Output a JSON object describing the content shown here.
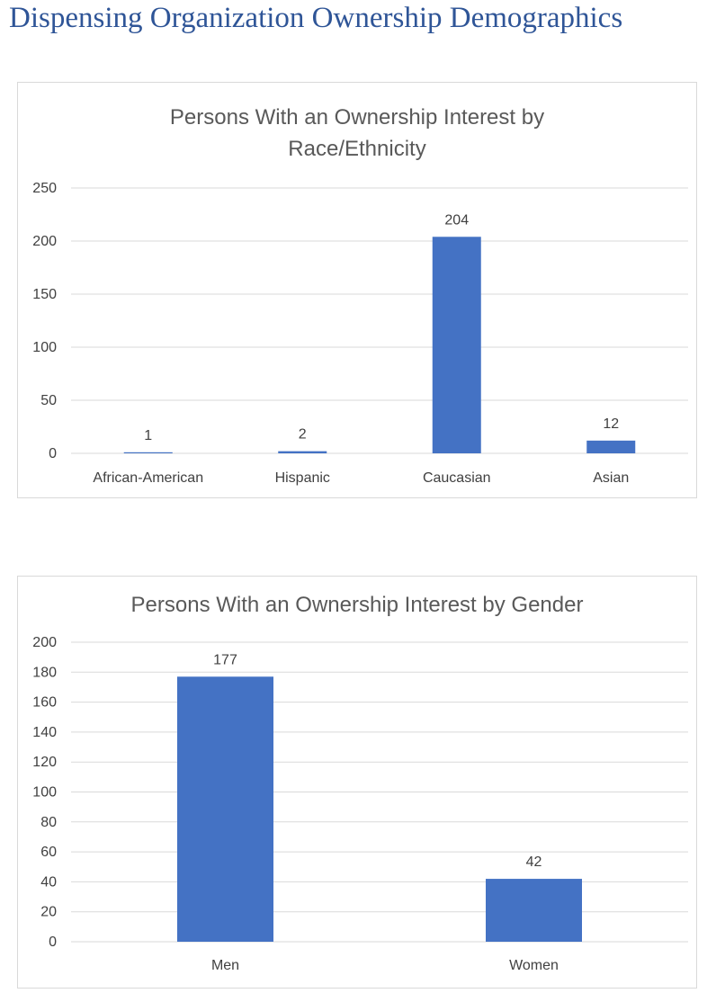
{
  "page": {
    "title": "Dispensing Organization Ownership Demographics"
  },
  "chart_data": [
    {
      "type": "bar",
      "title_lines": [
        "Persons With an Ownership Interest by",
        "Race/Ethnicity"
      ],
      "categories": [
        "African-American",
        "Hispanic",
        "Caucasian",
        "Asian"
      ],
      "values": [
        1,
        2,
        204,
        12
      ],
      "data_labels": [
        "1",
        "2",
        "204",
        "12"
      ],
      "ylim": [
        0,
        250
      ],
      "yticks": [
        0,
        50,
        100,
        150,
        200,
        250
      ],
      "grid": true,
      "legend": "none",
      "bar_color": "#4472c4",
      "xlabel": "",
      "ylabel": ""
    },
    {
      "type": "bar",
      "title_lines": [
        "Persons With an Ownership Interest by Gender"
      ],
      "categories": [
        "Men",
        "Women"
      ],
      "values": [
        177,
        42
      ],
      "data_labels": [
        "177",
        "42"
      ],
      "ylim": [
        0,
        200
      ],
      "yticks": [
        0,
        20,
        40,
        60,
        80,
        100,
        120,
        140,
        160,
        180,
        200
      ],
      "grid": true,
      "legend": "none",
      "bar_color": "#4472c4",
      "xlabel": "",
      "ylabel": ""
    }
  ]
}
